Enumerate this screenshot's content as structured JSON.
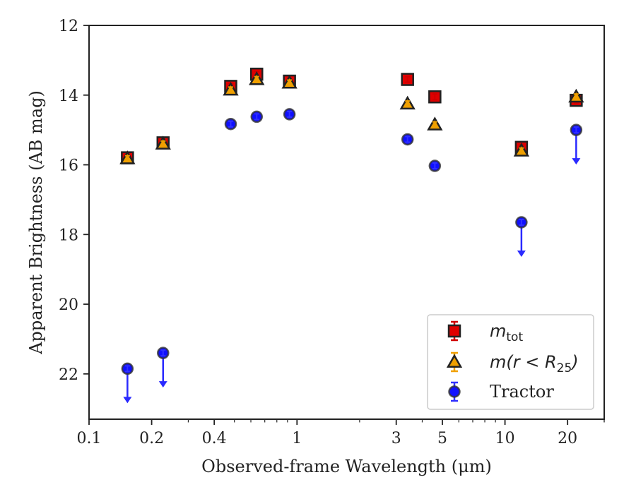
{
  "chart_data": {
    "type": "scatter",
    "xlabel": "Observed-frame Wavelength (μm)",
    "ylabel": "Apparent Brightness (AB mag)",
    "x_scale": "log",
    "xlim": [
      0.1,
      30
    ],
    "ylim": [
      23.3,
      12
    ],
    "y_inverted": true,
    "x_ticks": [
      {
        "value": 0.1,
        "label": "0.1"
      },
      {
        "value": 0.2,
        "label": "0.2"
      },
      {
        "value": 0.4,
        "label": "0.4"
      },
      {
        "value": 1,
        "label": "1"
      },
      {
        "value": 3,
        "label": "3"
      },
      {
        "value": 5,
        "label": "5"
      },
      {
        "value": 10,
        "label": "10"
      },
      {
        "value": 20,
        "label": "20"
      }
    ],
    "y_ticks": [
      {
        "value": 12,
        "label": "12"
      },
      {
        "value": 14,
        "label": "14"
      },
      {
        "value": 16,
        "label": "16"
      },
      {
        "value": 18,
        "label": "18"
      },
      {
        "value": 20,
        "label": "20"
      },
      {
        "value": 22,
        "label": "22"
      }
    ],
    "grid": false,
    "legend_position": "lower-right",
    "series": [
      {
        "name": "m_tot",
        "legend": {
          "main": "m",
          "sub": "tot",
          "suffix": ""
        },
        "marker": "square",
        "color": "#e00000",
        "errcolor": "#d00000",
        "points": [
          {
            "x": 0.153,
            "y": 15.8
          },
          {
            "x": 0.227,
            "y": 15.37
          },
          {
            "x": 0.48,
            "y": 13.75
          },
          {
            "x": 0.64,
            "y": 13.4
          },
          {
            "x": 0.92,
            "y": 13.6
          },
          {
            "x": 3.4,
            "y": 13.55
          },
          {
            "x": 4.6,
            "y": 14.05
          },
          {
            "x": 12,
            "y": 15.5
          },
          {
            "x": 22,
            "y": 14.15
          }
        ]
      },
      {
        "name": "m(r<R_25)",
        "legend": {
          "main": "m(r < R",
          "sub": "25",
          "suffix": ")"
        },
        "marker": "triangle",
        "color": "#f0a000",
        "errcolor": "#f0a000",
        "points": [
          {
            "x": 0.153,
            "y": 15.82
          },
          {
            "x": 0.227,
            "y": 15.4
          },
          {
            "x": 0.48,
            "y": 13.85
          },
          {
            "x": 0.64,
            "y": 13.55
          },
          {
            "x": 0.92,
            "y": 13.65
          },
          {
            "x": 3.4,
            "y": 14.25
          },
          {
            "x": 4.6,
            "y": 14.85
          },
          {
            "x": 12,
            "y": 15.6
          },
          {
            "x": 22,
            "y": 14.05
          }
        ]
      },
      {
        "name": "Tractor",
        "legend": {
          "main": "Tractor",
          "sub": "",
          "suffix": ""
        },
        "marker": "circle",
        "color": "#1010ff",
        "errcolor": "#3030ff",
        "points": [
          {
            "x": 0.153,
            "y": 21.85,
            "upper_limit": true
          },
          {
            "x": 0.227,
            "y": 21.4,
            "upper_limit": true
          },
          {
            "x": 0.48,
            "y": 14.83
          },
          {
            "x": 0.64,
            "y": 14.62
          },
          {
            "x": 0.92,
            "y": 14.55
          },
          {
            "x": 3.4,
            "y": 15.27
          },
          {
            "x": 4.6,
            "y": 16.03
          },
          {
            "x": 12,
            "y": 17.65,
            "upper_limit": true
          },
          {
            "x": 22,
            "y": 15.0,
            "upper_limit": true
          }
        ]
      }
    ]
  }
}
